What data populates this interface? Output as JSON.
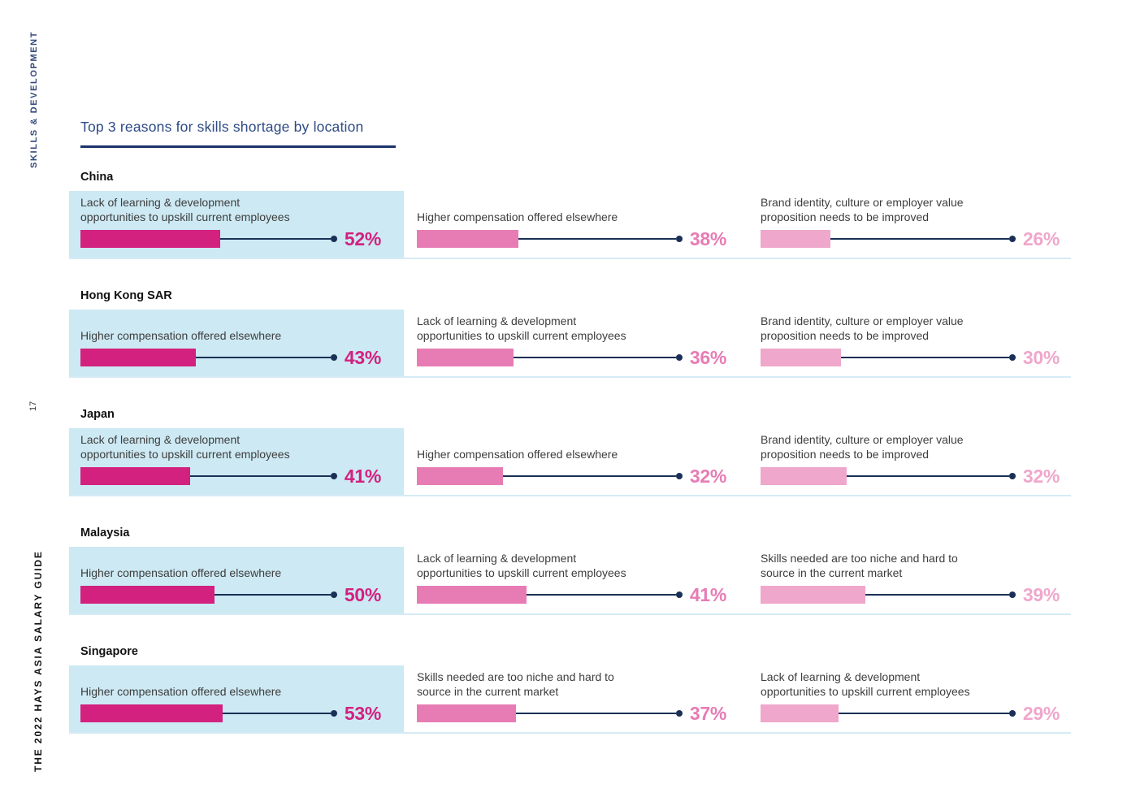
{
  "sidebar": {
    "top_label": "SKILLS & DEVELOPMENT",
    "page_number": "17",
    "bottom_label": "THE 2022 HAYS ASIA SALARY GUIDE"
  },
  "chart_data": {
    "type": "bar",
    "title": "Top 3 reasons for skills shortage by location",
    "unit": "%",
    "orientation": "horizontal",
    "legend": "none",
    "value_axis": "hidden",
    "rank_colors": [
      "#d2217f",
      "#e77cb4",
      "#efa7cb"
    ],
    "highlight_background": "#cde9f3",
    "connector_color": "#1a3056",
    "locations": [
      {
        "name": "China",
        "reasons": [
          {
            "label": "Lack of learning & development\nopportunities to upskill current employees",
            "value": 52,
            "display": "52%"
          },
          {
            "label": "Higher compensation offered elsewhere",
            "value": 38,
            "display": "38%"
          },
          {
            "label": "Brand identity, culture or employer value\nproposition needs to be improved",
            "value": 26,
            "display": "26%"
          }
        ]
      },
      {
        "name": "Hong Kong SAR",
        "reasons": [
          {
            "label": "Higher compensation offered elsewhere",
            "value": 43,
            "display": "43%"
          },
          {
            "label": "Lack of learning & development\nopportunities to upskill current employees",
            "value": 36,
            "display": "36%"
          },
          {
            "label": "Brand identity, culture or employer value\nproposition needs to be improved",
            "value": 30,
            "display": "30%"
          }
        ]
      },
      {
        "name": "Japan",
        "reasons": [
          {
            "label": "Lack of learning & development\nopportunities to upskill current employees",
            "value": 41,
            "display": "41%"
          },
          {
            "label": "Higher compensation offered elsewhere",
            "value": 32,
            "display": "32%"
          },
          {
            "label": "Brand identity, culture or employer value\nproposition needs to be improved",
            "value": 32,
            "display": "32%"
          }
        ]
      },
      {
        "name": "Malaysia",
        "reasons": [
          {
            "label": "Higher compensation offered elsewhere",
            "value": 50,
            "display": "50%"
          },
          {
            "label": "Lack of learning & development\nopportunities to upskill current employees",
            "value": 41,
            "display": "41%"
          },
          {
            "label": "Skills needed are too niche and hard to\nsource in the current market",
            "value": 39,
            "display": "39%"
          }
        ]
      },
      {
        "name": "Singapore",
        "reasons": [
          {
            "label": "Higher compensation offered elsewhere",
            "value": 53,
            "display": "53%"
          },
          {
            "label": "Skills needed are too niche and hard to\nsource in the current market",
            "value": 37,
            "display": "37%"
          },
          {
            "label": "Lack of learning & development\nopportunities to upskill current employees",
            "value": 29,
            "display": "29%"
          }
        ]
      }
    ]
  }
}
